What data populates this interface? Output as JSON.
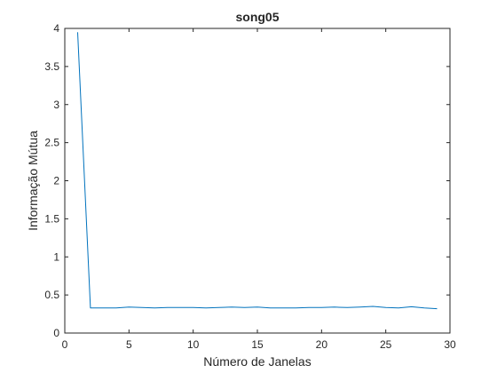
{
  "chart_data": {
    "type": "line",
    "title": "song05",
    "xlabel": "Número de Janelas",
    "ylabel": "Informação Mútua",
    "xlim": [
      0,
      30
    ],
    "ylim": [
      0,
      4
    ],
    "xticks": [
      0,
      5,
      10,
      15,
      20,
      25,
      30
    ],
    "yticks": [
      0,
      0.5,
      1,
      1.5,
      2,
      2.5,
      3,
      3.5,
      4
    ],
    "xtick_labels": [
      "0",
      "5",
      "10",
      "15",
      "20",
      "25",
      "30"
    ],
    "ytick_labels": [
      "0",
      "0.5",
      "1",
      "1.5",
      "2",
      "2.5",
      "3",
      "3.5",
      "4"
    ],
    "grid": false,
    "series": [
      {
        "color": "#0072bd",
        "x": [
          1,
          2,
          3,
          4,
          5,
          6,
          7,
          8,
          9,
          10,
          11,
          12,
          13,
          14,
          15,
          16,
          17,
          18,
          19,
          20,
          21,
          22,
          23,
          24,
          25,
          26,
          27,
          28,
          29
        ],
        "y": [
          3.95,
          0.33,
          0.33,
          0.33,
          0.34,
          0.335,
          0.33,
          0.335,
          0.335,
          0.335,
          0.33,
          0.335,
          0.34,
          0.335,
          0.34,
          0.33,
          0.33,
          0.33,
          0.335,
          0.335,
          0.34,
          0.335,
          0.34,
          0.35,
          0.335,
          0.33,
          0.345,
          0.33,
          0.32
        ]
      }
    ]
  }
}
